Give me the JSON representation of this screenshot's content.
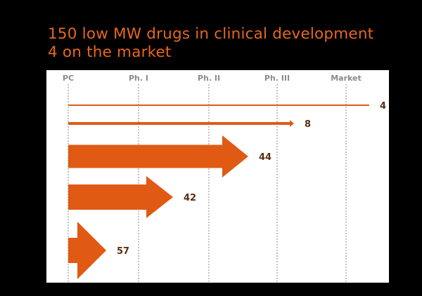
{
  "slide": {
    "title_line1": "150 low MW drugs in clinical development",
    "title_line2": "4 on the market"
  },
  "chart_data": {
    "type": "bar",
    "orientation": "horizontal-arrows",
    "stages": [
      "PC",
      "Ph. I",
      "Ph. II",
      "Ph. III",
      "Market"
    ],
    "series": [
      {
        "name": "Market",
        "value": 4,
        "label": "4",
        "reaches_stage": "Market"
      },
      {
        "name": "Ph. III",
        "value": 8,
        "label": "8",
        "reaches_stage": "Ph. III"
      },
      {
        "name": "Ph. II",
        "value": 44,
        "label": "44",
        "reaches_stage": "Ph. II"
      },
      {
        "name": "Ph. I",
        "value": 42,
        "label": "42",
        "reaches_stage": "Ph. I"
      },
      {
        "name": "PC",
        "value": 57,
        "label": "57",
        "reaches_stage": "PC"
      }
    ],
    "grid": true,
    "colors": {
      "arrow": "#e05a14",
      "label": "#5a2e12",
      "stage": "#8a8a8a",
      "title": "#e8671e"
    }
  }
}
